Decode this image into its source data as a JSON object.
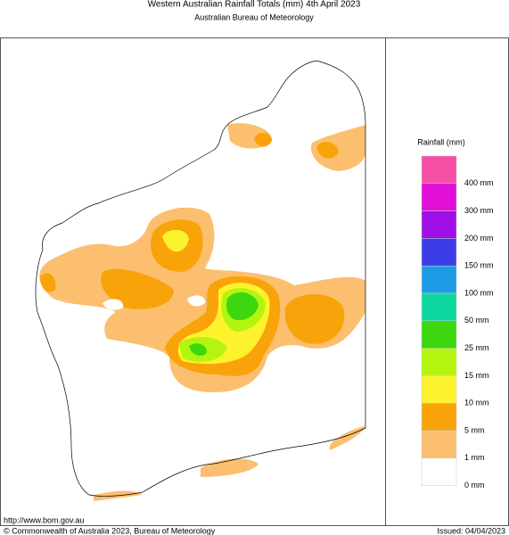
{
  "header": {
    "title": "Western Australian Rainfall Totals (mm) 4th April 2023",
    "subtitle": "Australian Bureau of Meteorology"
  },
  "legend": {
    "title": "Rainfall (mm)",
    "colors": [
      "#f550a5",
      "#e10fd7",
      "#a00fe6",
      "#3c3ce6",
      "#1e9be6",
      "#0fd7a0",
      "#3cd70f",
      "#b4f50f",
      "#fdf22e",
      "#f9a30a",
      "#fbbf6f",
      "#ffffff"
    ],
    "labels": [
      "400 mm",
      "300 mm",
      "200 mm",
      "150 mm",
      "100 mm",
      "50 mm",
      "25 mm",
      "15 mm",
      "10 mm",
      "5 mm",
      "1 mm",
      "0 mm"
    ]
  },
  "footer": {
    "url": "http://www.bom.gov.au",
    "copyright": "© Commonwealth of Australia 2023, Bureau of Meteorology",
    "issued": "Issued: 04/04/2023"
  }
}
